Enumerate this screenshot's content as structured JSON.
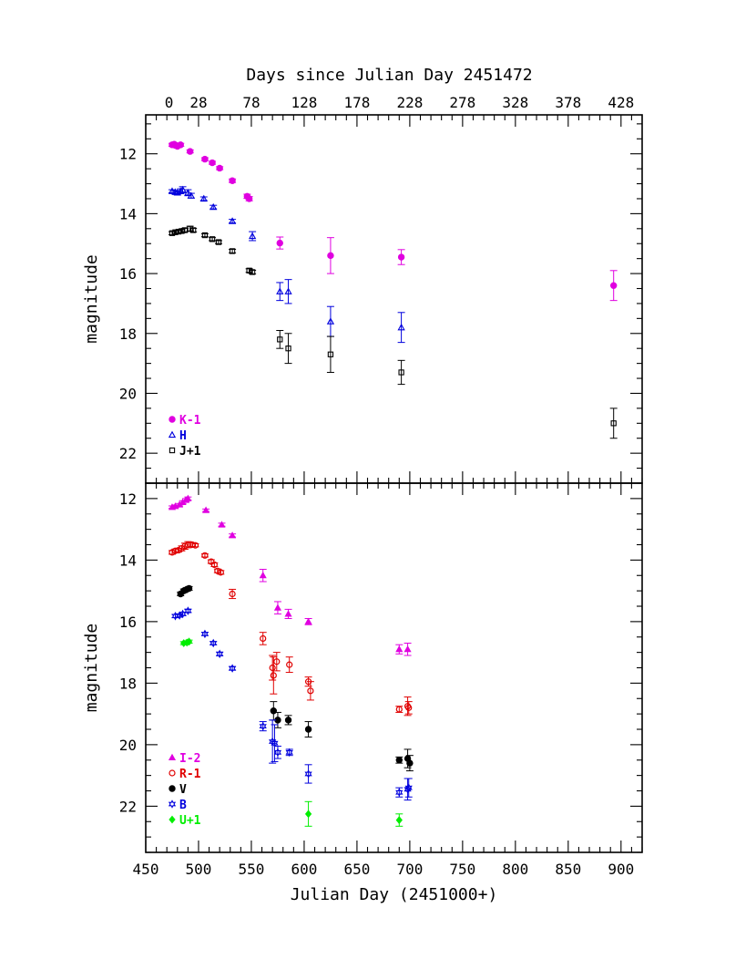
{
  "chart_data": [
    {
      "type": "scatter",
      "panel": "top",
      "title": "",
      "top_axis_label": "Days since Julian Day 2451472",
      "top_axis_ticks": [
        "0",
        "28",
        "78",
        "128",
        "178",
        "228",
        "278",
        "328",
        "378",
        "428"
      ],
      "xlabel": "",
      "ylabel": "magnitude",
      "xlim": [
        450,
        920
      ],
      "ylim": [
        23,
        10.7
      ],
      "y_inverted": true,
      "y_ticks": [
        "12",
        "14",
        "16",
        "18",
        "20",
        "22"
      ],
      "legend_position": "bottom-left",
      "series": [
        {
          "name": "K-1",
          "color": "#e000e0",
          "marker": "filled-circle",
          "points": [
            {
              "x": 475,
              "y": 11.7,
              "err": 0.05
            },
            {
              "x": 477,
              "y": 11.68,
              "err": 0.05
            },
            {
              "x": 478,
              "y": 11.72,
              "err": 0.05
            },
            {
              "x": 480,
              "y": 11.75,
              "err": 0.05
            },
            {
              "x": 483,
              "y": 11.7,
              "err": 0.05
            },
            {
              "x": 492,
              "y": 11.92,
              "err": 0.05
            },
            {
              "x": 506,
              "y": 12.18,
              "err": 0.05
            },
            {
              "x": 513,
              "y": 12.3,
              "err": 0.05
            },
            {
              "x": 520,
              "y": 12.48,
              "err": 0.05
            },
            {
              "x": 532,
              "y": 12.9,
              "err": 0.06
            },
            {
              "x": 546,
              "y": 13.42,
              "err": 0.07
            },
            {
              "x": 548,
              "y": 13.5,
              "err": 0.07
            },
            {
              "x": 577,
              "y": 14.98,
              "err": 0.2
            },
            {
              "x": 625,
              "y": 15.4,
              "err": 0.6
            },
            {
              "x": 692,
              "y": 15.45,
              "err": 0.25
            },
            {
              "x": 893,
              "y": 16.4,
              "err": 0.5
            }
          ]
        },
        {
          "name": "H",
          "color": "#0000dd",
          "marker": "open-triangle",
          "points": [
            {
              "x": 475,
              "y": 13.25,
              "err": 0.05
            },
            {
              "x": 478,
              "y": 13.28,
              "err": 0.05
            },
            {
              "x": 480,
              "y": 13.3,
              "err": 0.05
            },
            {
              "x": 483,
              "y": 13.25,
              "err": 0.08
            },
            {
              "x": 485,
              "y": 13.2,
              "err": 0.1
            },
            {
              "x": 490,
              "y": 13.3,
              "err": 0.1
            },
            {
              "x": 493,
              "y": 13.4,
              "err": 0.08
            },
            {
              "x": 505,
              "y": 13.5,
              "err": 0.06
            },
            {
              "x": 514,
              "y": 13.78,
              "err": 0.06
            },
            {
              "x": 532,
              "y": 14.25,
              "err": 0.06
            },
            {
              "x": 551,
              "y": 14.75,
              "err": 0.15
            },
            {
              "x": 577,
              "y": 16.6,
              "err": 0.3
            },
            {
              "x": 585,
              "y": 16.6,
              "err": 0.4
            },
            {
              "x": 625,
              "y": 17.6,
              "err": 0.5
            },
            {
              "x": 692,
              "y": 17.8,
              "err": 0.5
            }
          ]
        },
        {
          "name": "J+1",
          "color": "#000000",
          "marker": "open-square",
          "points": [
            {
              "x": 475,
              "y": 14.65,
              "err": 0.05
            },
            {
              "x": 478,
              "y": 14.62,
              "err": 0.05
            },
            {
              "x": 481,
              "y": 14.6,
              "err": 0.05
            },
            {
              "x": 484,
              "y": 14.58,
              "err": 0.06
            },
            {
              "x": 487,
              "y": 14.55,
              "err": 0.06
            },
            {
              "x": 492,
              "y": 14.5,
              "err": 0.08
            },
            {
              "x": 495,
              "y": 14.55,
              "err": 0.06
            },
            {
              "x": 506,
              "y": 14.72,
              "err": 0.05
            },
            {
              "x": 513,
              "y": 14.85,
              "err": 0.05
            },
            {
              "x": 519,
              "y": 14.95,
              "err": 0.05
            },
            {
              "x": 532,
              "y": 15.25,
              "err": 0.06
            },
            {
              "x": 548,
              "y": 15.9,
              "err": 0.06
            },
            {
              "x": 551,
              "y": 15.95,
              "err": 0.06
            },
            {
              "x": 577,
              "y": 18.2,
              "err": 0.3
            },
            {
              "x": 585,
              "y": 18.5,
              "err": 0.5
            },
            {
              "x": 625,
              "y": 18.7,
              "err": 0.6
            },
            {
              "x": 692,
              "y": 19.3,
              "err": 0.4
            },
            {
              "x": 893,
              "y": 21.0,
              "err": 0.5
            }
          ]
        }
      ]
    },
    {
      "type": "scatter",
      "panel": "bottom",
      "title": "",
      "xlabel": "Julian Day (2451000+)",
      "ylabel": "magnitude",
      "xlim": [
        450,
        920
      ],
      "ylim": [
        23.5,
        11.5
      ],
      "y_inverted": true,
      "x_ticks": [
        "450",
        "500",
        "550",
        "600",
        "650",
        "700",
        "750",
        "800",
        "850",
        "900"
      ],
      "y_ticks": [
        "12",
        "14",
        "16",
        "18",
        "20",
        "22"
      ],
      "legend_position": "bottom-left",
      "series": [
        {
          "name": "I-2",
          "color": "#e000e0",
          "marker": "filled-triangle",
          "points": [
            {
              "x": 475,
              "y": 12.28,
              "err": 0.04
            },
            {
              "x": 478,
              "y": 12.25,
              "err": 0.04
            },
            {
              "x": 482,
              "y": 12.2,
              "err": 0.04
            },
            {
              "x": 485,
              "y": 12.12,
              "err": 0.05
            },
            {
              "x": 488,
              "y": 12.05,
              "err": 0.05
            },
            {
              "x": 490,
              "y": 12.0,
              "err": 0.05
            },
            {
              "x": 507,
              "y": 12.38,
              "err": 0.04
            },
            {
              "x": 522,
              "y": 12.85,
              "err": 0.05
            },
            {
              "x": 532,
              "y": 13.2,
              "err": 0.05
            },
            {
              "x": 561,
              "y": 14.5,
              "err": 0.2
            },
            {
              "x": 575,
              "y": 15.55,
              "err": 0.2
            },
            {
              "x": 585,
              "y": 15.75,
              "err": 0.15
            },
            {
              "x": 604,
              "y": 16.0,
              "err": 0.1
            },
            {
              "x": 690,
              "y": 16.9,
              "err": 0.15
            },
            {
              "x": 698,
              "y": 16.9,
              "err": 0.2
            }
          ]
        },
        {
          "name": "R-1",
          "color": "#e00000",
          "marker": "open-circle",
          "points": [
            {
              "x": 475,
              "y": 13.75,
              "err": 0.06
            },
            {
              "x": 478,
              "y": 13.7,
              "err": 0.06
            },
            {
              "x": 481,
              "y": 13.68,
              "err": 0.06
            },
            {
              "x": 484,
              "y": 13.62,
              "err": 0.08
            },
            {
              "x": 487,
              "y": 13.55,
              "err": 0.1
            },
            {
              "x": 490,
              "y": 13.5,
              "err": 0.1
            },
            {
              "x": 494,
              "y": 13.5,
              "err": 0.06
            },
            {
              "x": 497,
              "y": 13.52,
              "err": 0.05
            },
            {
              "x": 506,
              "y": 13.85,
              "err": 0.05
            },
            {
              "x": 512,
              "y": 14.05,
              "err": 0.06
            },
            {
              "x": 515,
              "y": 14.15,
              "err": 0.06
            },
            {
              "x": 518,
              "y": 14.35,
              "err": 0.06
            },
            {
              "x": 521,
              "y": 14.4,
              "err": 0.06
            },
            {
              "x": 532,
              "y": 15.1,
              "err": 0.15
            },
            {
              "x": 561,
              "y": 16.55,
              "err": 0.2
            },
            {
              "x": 570,
              "y": 17.5,
              "err": 0.4
            },
            {
              "x": 571,
              "y": 17.75,
              "err": 0.6
            },
            {
              "x": 574,
              "y": 17.3,
              "err": 0.3
            },
            {
              "x": 586,
              "y": 17.4,
              "err": 0.25
            },
            {
              "x": 604,
              "y": 17.95,
              "err": 0.15
            },
            {
              "x": 606,
              "y": 18.25,
              "err": 0.3
            },
            {
              "x": 690,
              "y": 18.85,
              "err": 0.1
            },
            {
              "x": 698,
              "y": 18.75,
              "err": 0.3
            },
            {
              "x": 699,
              "y": 18.8,
              "err": 0.2
            }
          ]
        },
        {
          "name": "V",
          "color": "#000000",
          "marker": "filled-circle",
          "points": [
            {
              "x": 483,
              "y": 15.1,
              "err": 0.06
            },
            {
              "x": 486,
              "y": 15.0,
              "err": 0.06
            },
            {
              "x": 489,
              "y": 14.95,
              "err": 0.06
            },
            {
              "x": 491,
              "y": 14.92,
              "err": 0.06
            },
            {
              "x": 571,
              "y": 18.9,
              "err": 0.3
            },
            {
              "x": 575,
              "y": 19.2,
              "err": 0.25
            },
            {
              "x": 585,
              "y": 19.2,
              "err": 0.15
            },
            {
              "x": 604,
              "y": 19.5,
              "err": 0.25
            },
            {
              "x": 690,
              "y": 20.5,
              "err": 0.1
            },
            {
              "x": 698,
              "y": 20.45,
              "err": 0.3
            },
            {
              "x": 700,
              "y": 20.6,
              "err": 0.25
            }
          ]
        },
        {
          "name": "B",
          "color": "#0000dd",
          "marker": "open-star",
          "points": [
            {
              "x": 478,
              "y": 15.82,
              "err": 0.05
            },
            {
              "x": 482,
              "y": 15.8,
              "err": 0.05
            },
            {
              "x": 485,
              "y": 15.75,
              "err": 0.05
            },
            {
              "x": 490,
              "y": 15.65,
              "err": 0.05
            },
            {
              "x": 506,
              "y": 16.4,
              "err": 0.05
            },
            {
              "x": 514,
              "y": 16.7,
              "err": 0.05
            },
            {
              "x": 520,
              "y": 17.05,
              "err": 0.06
            },
            {
              "x": 532,
              "y": 17.52,
              "err": 0.06
            },
            {
              "x": 561,
              "y": 19.4,
              "err": 0.15
            },
            {
              "x": 570,
              "y": 19.9,
              "err": 0.7
            },
            {
              "x": 572,
              "y": 19.95,
              "err": 0.6
            },
            {
              "x": 575,
              "y": 20.25,
              "err": 0.2
            },
            {
              "x": 586,
              "y": 20.25,
              "err": 0.1
            },
            {
              "x": 604,
              "y": 20.95,
              "err": 0.3
            },
            {
              "x": 690,
              "y": 21.55,
              "err": 0.15
            },
            {
              "x": 698,
              "y": 21.45,
              "err": 0.35
            },
            {
              "x": 699,
              "y": 21.4,
              "err": 0.3
            }
          ]
        },
        {
          "name": "U+1",
          "color": "#00ee00",
          "marker": "filled-diamond",
          "points": [
            {
              "x": 486,
              "y": 16.7,
              "err": 0.05
            },
            {
              "x": 489,
              "y": 16.68,
              "err": 0.05
            },
            {
              "x": 491,
              "y": 16.65,
              "err": 0.05
            },
            {
              "x": 604,
              "y": 22.25,
              "err": 0.4
            },
            {
              "x": 690,
              "y": 22.45,
              "err": 0.2
            }
          ]
        }
      ]
    }
  ]
}
